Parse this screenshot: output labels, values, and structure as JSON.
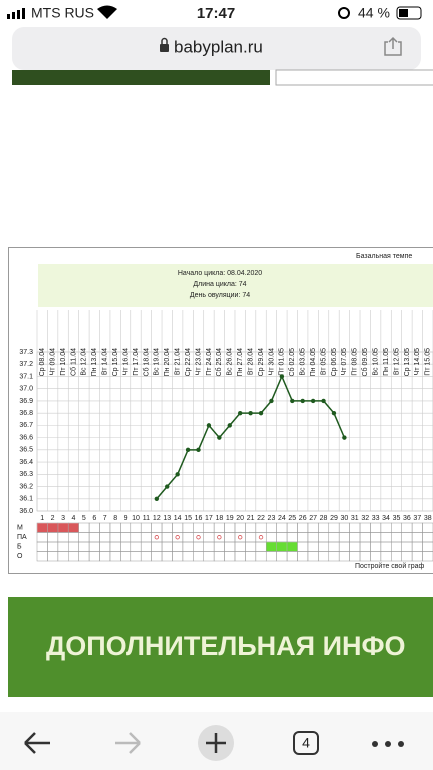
{
  "status_bar": {
    "carrier": "MTS RUS",
    "time": "17:47",
    "battery": "44 %"
  },
  "browser": {
    "url": "babyplan.ru",
    "tab_count": 4
  },
  "chart_data": {
    "type": "line",
    "title": "Базальная темпе",
    "info": [
      "Начало цикла: 08.04.2020",
      "Длина цикла: 74",
      "День овуляции: 74"
    ],
    "categories": [
      "Ср 08.04",
      "Чт 09.04",
      "Пт 10.04",
      "Сб 11.04",
      "Вс 12.04",
      "Пн 13.04",
      "Вт 14.04",
      "Ср 15.04",
      "Чт 16.04",
      "Пт 17.04",
      "Сб 18.04",
      "Вс 19.04",
      "Пн 20.04",
      "Вт 21.04",
      "Ср 22.04",
      "Чт 23.04",
      "Пт 24.04",
      "Сб 25.04",
      "Вс 26.04",
      "Пн 27.04",
      "Вт 28.04",
      "Ср 29.04",
      "Чт 30.04",
      "Пт 01.05",
      "Сб 02.05",
      "Вс 03.05",
      "Пн 04.05",
      "Вт 05.05",
      "Ср 06.05",
      "Чт 07.05",
      "Пт 08.05",
      "Сб 09.05",
      "Вс 10.05",
      "Пн 11.05",
      "Вт 12.05",
      "Ср 13.05",
      "Чт 14.05",
      "Пт 15.05"
    ],
    "day_numbers": [
      1,
      2,
      3,
      4,
      5,
      6,
      7,
      8,
      9,
      10,
      11,
      12,
      13,
      14,
      15,
      16,
      17,
      18,
      19,
      20,
      21,
      22,
      23,
      24,
      25,
      26,
      27,
      28,
      29,
      30,
      31,
      32,
      33,
      34,
      35,
      36,
      37,
      38
    ],
    "values": [
      null,
      null,
      null,
      null,
      null,
      null,
      null,
      null,
      null,
      null,
      null,
      36.1,
      36.2,
      36.3,
      36.5,
      36.5,
      36.7,
      36.6,
      36.7,
      36.8,
      36.8,
      36.8,
      36.9,
      37.1,
      36.9,
      36.9,
      36.9,
      36.9,
      36.8,
      36.6,
      null,
      null,
      null,
      null,
      null,
      null,
      null,
      null
    ],
    "color": "#1f5a1f",
    "ylim": [
      36.0,
      37.3
    ],
    "yticks": [
      {
        "value": 36.0,
        "label": "36.0"
      },
      36.1,
      36.2,
      36.3,
      36.4,
      36.5,
      36.6,
      36.7,
      36.8,
      36.9,
      {
        "value": 37.0,
        "label": "37.0"
      },
      37.1,
      37.2,
      37.3
    ],
    "grid": true,
    "rows": [
      {
        "name": "М",
        "days": [
          1,
          2,
          3,
          4
        ],
        "color": "#d9575a"
      },
      {
        "name": "ПА",
        "days": [
          12,
          14,
          16,
          18,
          20,
          22
        ],
        "color": "#d9575a"
      },
      {
        "name": "Б",
        "days": [
          23,
          24,
          25
        ],
        "color": "#66dd33"
      },
      {
        "name": "О",
        "days": [],
        "color": "#66dd33"
      }
    ],
    "footer": "Постройте свой граф"
  },
  "banner": "ДОПОЛНИТЕЛЬНАЯ ИНФО"
}
